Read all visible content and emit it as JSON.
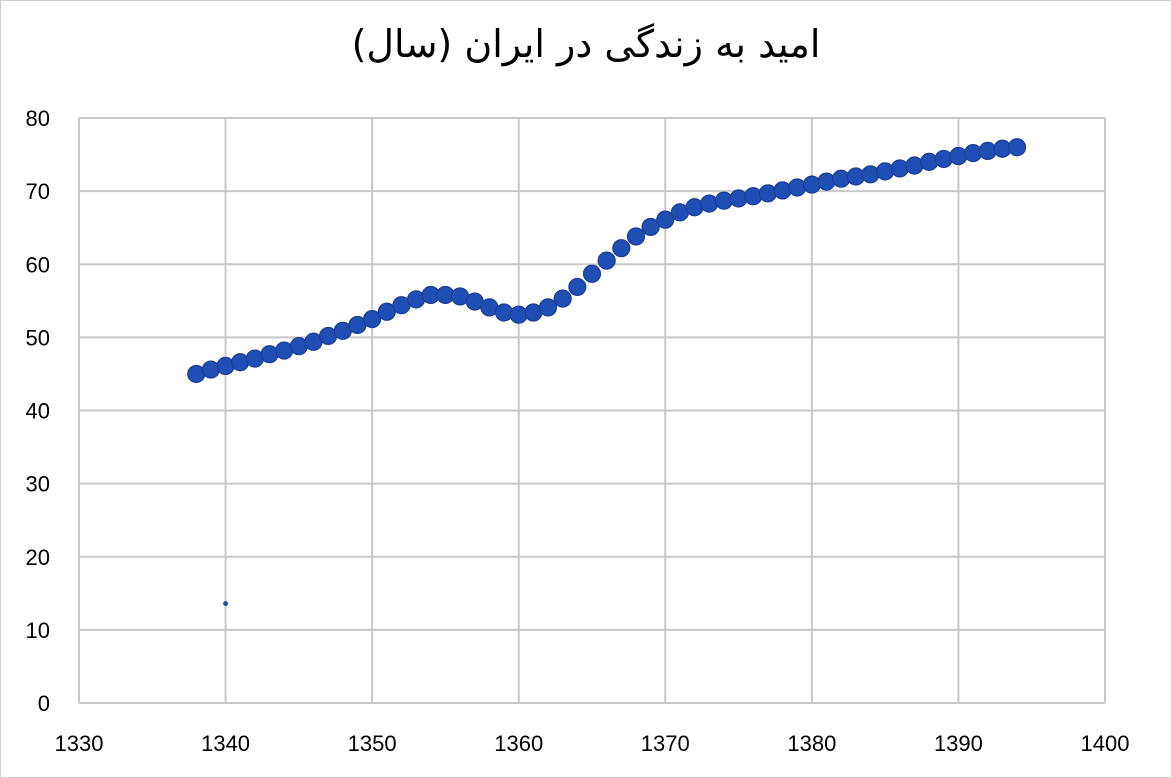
{
  "chart_data": {
    "type": "scatter",
    "title": "امید به زندگی در ایران (سال)",
    "xlabel": "",
    "ylabel": "",
    "xlim": [
      1330,
      1400
    ],
    "ylim": [
      0,
      80
    ],
    "x_ticks": [
      1330,
      1340,
      1350,
      1360,
      1370,
      1380,
      1390,
      1400
    ],
    "y_ticks": [
      0,
      10,
      20,
      30,
      40,
      50,
      60,
      70,
      80
    ],
    "grid": true,
    "legend": "none",
    "colors": {
      "marker": "#1f4fb5",
      "marker_edge": "#1a3e91",
      "grid": "#c8c8c8"
    },
    "series": [
      {
        "x": [
          1338,
          1339,
          1340,
          1341,
          1342,
          1343,
          1344,
          1345,
          1346,
          1347,
          1348,
          1349,
          1350,
          1351,
          1352,
          1353,
          1354,
          1355,
          1356,
          1357,
          1358,
          1359,
          1360,
          1361,
          1362,
          1363,
          1364,
          1365,
          1366,
          1367,
          1368,
          1369,
          1370,
          1371,
          1372,
          1373,
          1374,
          1375,
          1376,
          1377,
          1378,
          1379,
          1380,
          1381,
          1382,
          1383,
          1384,
          1385,
          1386,
          1387,
          1388,
          1389,
          1390,
          1391,
          1392,
          1393,
          1394
        ],
        "y": [
          45.0,
          45.6,
          46.1,
          46.6,
          47.1,
          47.7,
          48.2,
          48.8,
          49.4,
          50.2,
          50.9,
          51.7,
          52.5,
          53.5,
          54.4,
          55.2,
          55.8,
          55.8,
          55.6,
          54.9,
          54.1,
          53.4,
          53.1,
          53.4,
          54.1,
          55.3,
          56.9,
          58.7,
          60.5,
          62.2,
          63.8,
          65.1,
          66.1,
          67.1,
          67.8,
          68.3,
          68.7,
          69.0,
          69.3,
          69.7,
          70.1,
          70.5,
          70.9,
          71.3,
          71.7,
          72.0,
          72.3,
          72.7,
          73.1,
          73.5,
          74.0,
          74.4,
          74.8,
          75.2,
          75.5,
          75.8,
          76.0
        ]
      },
      {
        "x": [
          1340
        ],
        "y": [
          13.6
        ],
        "marker_size": "small"
      }
    ]
  }
}
